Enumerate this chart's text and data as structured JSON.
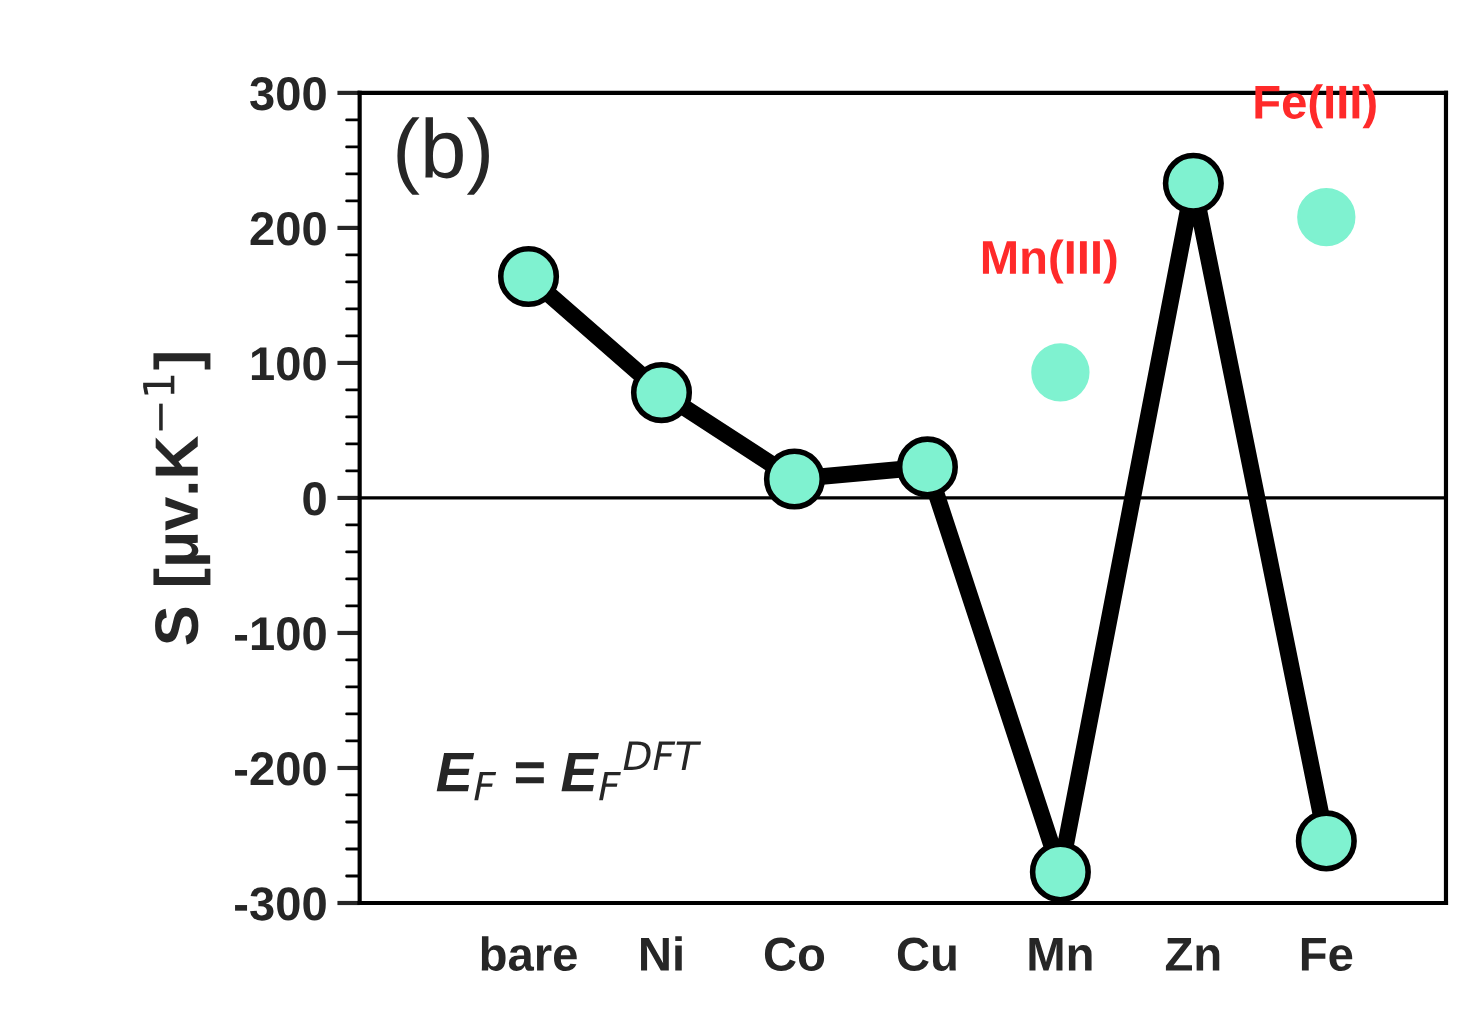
{
  "chart_data": {
    "type": "line",
    "ylabel": "S [μv.K$^{−1}$]",
    "categories": [
      "bare",
      "Ni",
      "Co",
      "Cu",
      "Mn",
      "Zn",
      "Fe"
    ],
    "series": [
      {
        "color": "#7ff2d0",
        "values": [
          164,
          78,
          14,
          23,
          -277,
          233,
          -254
        ]
      },
      {
        "type": "scatter",
        "name": "Mn(III)",
        "color": "#7ff2d0",
        "values": [
          null,
          null,
          null,
          null,
          93,
          null,
          null
        ]
      },
      {
        "type": "scatter",
        "name": "Fe(III)",
        "color": "#7ff2d0",
        "values": [
          null,
          null,
          null,
          null,
          null,
          null,
          208
        ]
      }
    ],
    "ylim": [
      -300,
      300
    ],
    "yticks": [
      -300,
      -200,
      -100,
      0,
      100,
      200,
      300
    ],
    "ref_lines": [
      {
        "axis": "y",
        "value": 0
      }
    ],
    "annotations": [
      "(b)",
      "E$_{F}$ = E$_{F}$$^{DFT}$"
    ],
    "marker": "circle",
    "grid": false,
    "legend": false
  }
}
